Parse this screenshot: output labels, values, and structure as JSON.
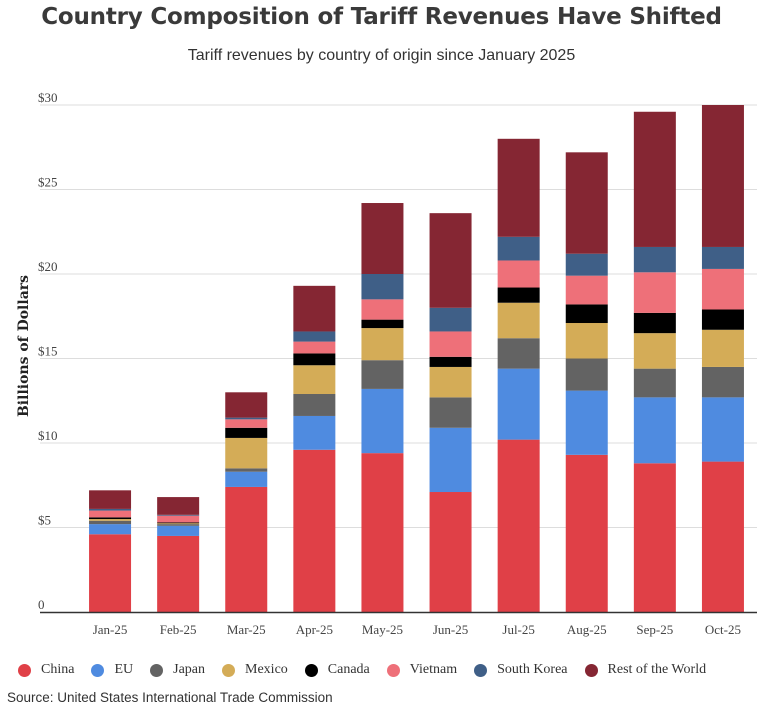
{
  "chart_data": {
    "type": "bar",
    "stacked": true,
    "title": "Country Composition of Tariff Revenues Have Shifted",
    "subtitle": "Tariff revenues by country of origin since January 2025",
    "xlabel": "",
    "ylabel": "Billions of Dollars",
    "ylim": [
      0,
      30
    ],
    "yticks": [
      0,
      5,
      10,
      15,
      20,
      25,
      30
    ],
    "ytick_labels": [
      "0",
      "$5",
      "$10",
      "$15",
      "$20",
      "$25",
      "$30"
    ],
    "categories": [
      "Jan-25",
      "Feb-25",
      "Mar-25",
      "Apr-25",
      "May-25",
      "Jun-25",
      "Jul-25",
      "Aug-25",
      "Sep-25",
      "Oct-25"
    ],
    "series": [
      {
        "name": "China",
        "color": "#e04047",
        "values": [
          4.6,
          4.5,
          7.4,
          9.6,
          9.4,
          7.1,
          10.2,
          9.3,
          8.8,
          8.9
        ]
      },
      {
        "name": "EU",
        "color": "#4f8be0",
        "values": [
          0.6,
          0.6,
          0.9,
          2.0,
          3.8,
          3.8,
          4.2,
          3.8,
          3.9,
          3.8
        ]
      },
      {
        "name": "Japan",
        "color": "#636363",
        "values": [
          0.2,
          0.1,
          0.2,
          1.3,
          1.7,
          1.8,
          1.8,
          1.9,
          1.7,
          1.8
        ]
      },
      {
        "name": "Mexico",
        "color": "#d4ac57",
        "values": [
          0.1,
          0.05,
          1.8,
          1.7,
          1.9,
          1.8,
          2.1,
          2.1,
          2.1,
          2.2
        ]
      },
      {
        "name": "Canada",
        "color": "#000000",
        "values": [
          0.1,
          0.05,
          0.6,
          0.7,
          0.5,
          0.6,
          0.9,
          1.1,
          1.2,
          1.2
        ]
      },
      {
        "name": "Vietnam",
        "color": "#ee7079",
        "values": [
          0.4,
          0.4,
          0.5,
          0.7,
          1.2,
          1.5,
          1.6,
          1.7,
          2.4,
          2.4
        ]
      },
      {
        "name": "South Korea",
        "color": "#3f5f87",
        "values": [
          0.1,
          0.05,
          0.1,
          0.6,
          1.5,
          1.4,
          1.4,
          1.3,
          1.5,
          1.3
        ]
      },
      {
        "name": "Rest of the World",
        "color": "#852633",
        "values": [
          1.1,
          1.05,
          1.5,
          2.7,
          4.2,
          5.6,
          5.8,
          6.0,
          8.0,
          8.4
        ]
      }
    ],
    "legend_position": "bottom",
    "grid": true
  },
  "source": "Source: United States International Trade Commission"
}
